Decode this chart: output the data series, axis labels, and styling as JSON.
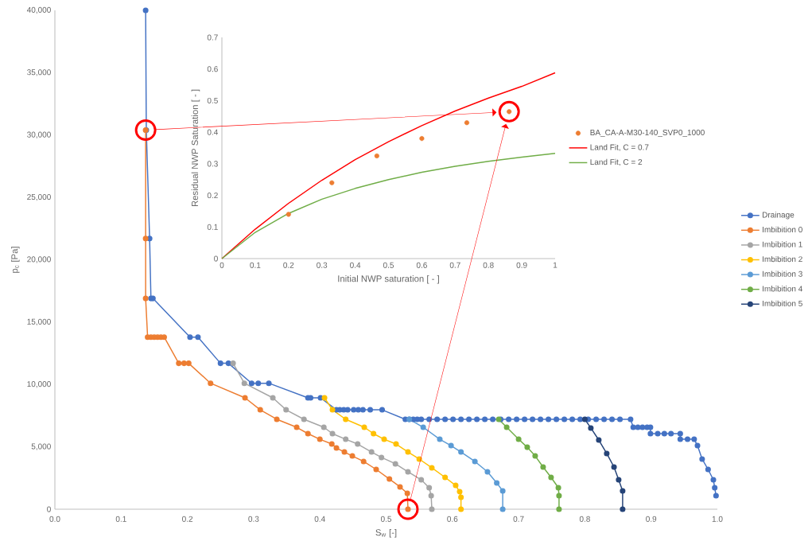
{
  "chart_data": [
    {
      "type": "line",
      "xlabel": "S$_{w}$ [-]",
      "ylabel": "p$_{c}$ [Pa]",
      "marker": "circle",
      "legend": "right",
      "xlim": [
        0,
        1
      ],
      "ylim": [
        0,
        40000
      ],
      "xticks": [
        {
          "value": 0,
          "label": "0.0"
        },
        {
          "value": 0.1,
          "label": "0.1"
        },
        {
          "value": 0.2,
          "label": "0.2"
        },
        {
          "value": 0.3,
          "label": "0.3"
        },
        {
          "value": 0.4,
          "label": "0.4"
        },
        {
          "value": 0.5,
          "label": "0.5"
        },
        {
          "value": 0.6,
          "label": "0.6"
        },
        {
          "value": 0.7,
          "label": "0.7"
        },
        {
          "value": 0.8,
          "label": "0.8"
        },
        {
          "value": 0.9,
          "label": "0.9"
        },
        {
          "value": 1,
          "label": "1.0"
        }
      ],
      "yticks": [
        0,
        {
          "value": 5000,
          "label": "5,000"
        },
        {
          "value": 10000,
          "label": "10,000"
        },
        {
          "value": 15000,
          "label": "15,000"
        },
        {
          "value": 20000,
          "label": "20,000"
        },
        {
          "value": 25000,
          "label": "25,000"
        },
        {
          "value": 30000,
          "label": "30,000"
        },
        {
          "value": 35000,
          "label": "35,000"
        },
        {
          "value": 40000,
          "label": "40,000"
        }
      ],
      "series": [
        {
          "name": "Drainage",
          "color": "#4472c4",
          "x": [
            0.137,
            0.138,
            0.143,
            0.145,
            0.148,
            0.204,
            0.216,
            0.25,
            0.262,
            0.297,
            0.307,
            0.323,
            0.382,
            0.386,
            0.401,
            0.425,
            0.43,
            0.436,
            0.442,
            0.451,
            0.458,
            0.465,
            0.476,
            0.494,
            0.529,
            0.535,
            0.541,
            0.547,
            0.553,
            0.565,
            0.577,
            0.589,
            0.601,
            0.613,
            0.625,
            0.637,
            0.649,
            0.661,
            0.673,
            0.685,
            0.697,
            0.709,
            0.721,
            0.733,
            0.745,
            0.757,
            0.769,
            0.781,
            0.793,
            0.805,
            0.817,
            0.829,
            0.841,
            0.853,
            0.869,
            0.873,
            0.88,
            0.887,
            0.894,
            0.899,
            0.899,
            0.91,
            0.92,
            0.93,
            0.944,
            0.944,
            0.955,
            0.965,
            0.97,
            0.977,
            0.986,
            0.994,
            0.996,
            0.998
          ],
          "values": [
            40000,
            30400,
            21700,
            16900,
            16900,
            13800,
            13800,
            11700,
            11700,
            10100,
            10100,
            10100,
            8930,
            8930,
            8930,
            7970,
            7970,
            7970,
            7970,
            7970,
            7970,
            7970,
            7970,
            7970,
            7210,
            7210,
            7210,
            7210,
            7210,
            7210,
            7210,
            7210,
            7210,
            7210,
            7210,
            7210,
            7210,
            7210,
            7210,
            7210,
            7210,
            7210,
            7210,
            7210,
            7210,
            7210,
            7210,
            7210,
            7210,
            7210,
            7210,
            7210,
            7210,
            7210,
            7210,
            6570,
            6570,
            6570,
            6570,
            6570,
            6060,
            6060,
            6060,
            6060,
            6060,
            5610,
            5610,
            5610,
            5100,
            4020,
            3190,
            2360,
            1720,
            1080
          ]
        },
        {
          "name": "Imbibition 0",
          "color": "#ed7d31",
          "x": [
            0.137,
            0.137,
            0.137,
            0.14,
            0.145,
            0.15,
            0.155,
            0.16,
            0.165,
            0.187,
            0.195,
            0.202,
            0.235,
            0.287,
            0.31,
            0.335,
            0.365,
            0.382,
            0.4,
            0.418,
            0.425,
            0.437,
            0.449,
            0.466,
            0.485,
            0.505,
            0.521,
            0.532,
            0.533
          ],
          "values": [
            30400,
            21700,
            16900,
            13800,
            13800,
            13800,
            13800,
            13800,
            13800,
            11700,
            11700,
            11700,
            10100,
            8930,
            7970,
            7210,
            6570,
            6060,
            5610,
            5230,
            4910,
            4590,
            4270,
            3830,
            3190,
            2420,
            1790,
            1280,
            0
          ]
        },
        {
          "name": "Imbibition 1",
          "color": "#a5a5a5",
          "x": [
            0.269,
            0.286,
            0.329,
            0.349,
            0.376,
            0.406,
            0.419,
            0.439,
            0.457,
            0.478,
            0.493,
            0.514,
            0.533,
            0.553,
            0.565,
            0.568,
            0.569
          ],
          "values": [
            11700,
            10100,
            8930,
            7970,
            7210,
            6570,
            6060,
            5610,
            5230,
            4590,
            4150,
            3640,
            3000,
            2360,
            1720,
            1080,
            0
          ]
        },
        {
          "name": "Imbibition 2",
          "color": "#ffc000",
          "x": [
            0.407,
            0.419,
            0.439,
            0.467,
            0.481,
            0.497,
            0.515,
            0.533,
            0.55,
            0.569,
            0.589,
            0.605,
            0.611,
            0.613,
            0.613
          ],
          "values": [
            8930,
            7970,
            7210,
            6570,
            6060,
            5610,
            5230,
            4590,
            4020,
            3320,
            2550,
            1910,
            1400,
            960,
            0
          ]
        },
        {
          "name": "Imbibition 3",
          "color": "#5b9bd5",
          "x": [
            0.535,
            0.556,
            0.581,
            0.598,
            0.613,
            0.634,
            0.653,
            0.667,
            0.676,
            0.676
          ],
          "values": [
            7210,
            6570,
            5610,
            5100,
            4590,
            3830,
            3000,
            2110,
            1470,
            0
          ]
        },
        {
          "name": "Imbibition 4",
          "color": "#70ad47",
          "x": [
            0.67,
            0.682,
            0.7,
            0.713,
            0.725,
            0.737,
            0.749,
            0.76,
            0.761,
            0.761
          ],
          "values": [
            7210,
            6570,
            5610,
            4970,
            4270,
            3380,
            2550,
            1720,
            1080,
            0
          ]
        },
        {
          "name": "Imbibition 5",
          "color": "#264478",
          "x": [
            0.8,
            0.809,
            0.821,
            0.833,
            0.844,
            0.851,
            0.857,
            0.857
          ],
          "values": [
            7210,
            6510,
            5550,
            4470,
            3380,
            2360,
            1470,
            0
          ]
        }
      ]
    },
    {
      "type": "line",
      "xlabel": "Initial NWP saturation [ - ]",
      "ylabel": "Residual NWP Saturation [ - ]",
      "legend": "right",
      "xlim": [
        0,
        1
      ],
      "ylim": [
        0,
        0.7
      ],
      "xticks": [
        0,
        0.1,
        0.2,
        0.3,
        0.4,
        0.5,
        0.6,
        0.7,
        0.8,
        0.9,
        1
      ],
      "yticks": [
        0,
        0.1,
        0.2,
        0.3,
        0.4,
        0.5,
        0.6,
        0.7
      ],
      "series": [
        {
          "name": "BA_CA-A-M30-140_SVP0_1000",
          "type": "scatter",
          "marker": "circle",
          "color": "#ed7d31",
          "x": [
            0.2,
            0.33,
            0.465,
            0.6,
            0.735,
            0.862
          ],
          "values": [
            0.14,
            0.24,
            0.325,
            0.38,
            0.43,
            0.465
          ]
        },
        {
          "name": "Land Fit, C = 0.7",
          "type": "line",
          "marker": "none",
          "color": "#ff0000",
          "x": [
            0,
            0.1,
            0.2,
            0.3,
            0.4,
            0.5,
            0.6,
            0.7,
            0.8,
            0.9,
            1
          ],
          "values": [
            0,
            0.093,
            0.175,
            0.248,
            0.313,
            0.37,
            0.421,
            0.467,
            0.508,
            0.545,
            0.588
          ]
        },
        {
          "name": "Land Fit, C = 2",
          "type": "line",
          "marker": "none",
          "color": "#70ad47",
          "x": [
            0,
            0.1,
            0.2,
            0.3,
            0.4,
            0.5,
            0.6,
            0.7,
            0.8,
            0.9,
            1
          ],
          "values": [
            0,
            0.083,
            0.143,
            0.188,
            0.222,
            0.25,
            0.273,
            0.292,
            0.308,
            0.321,
            0.333
          ]
        }
      ]
    }
  ]
}
